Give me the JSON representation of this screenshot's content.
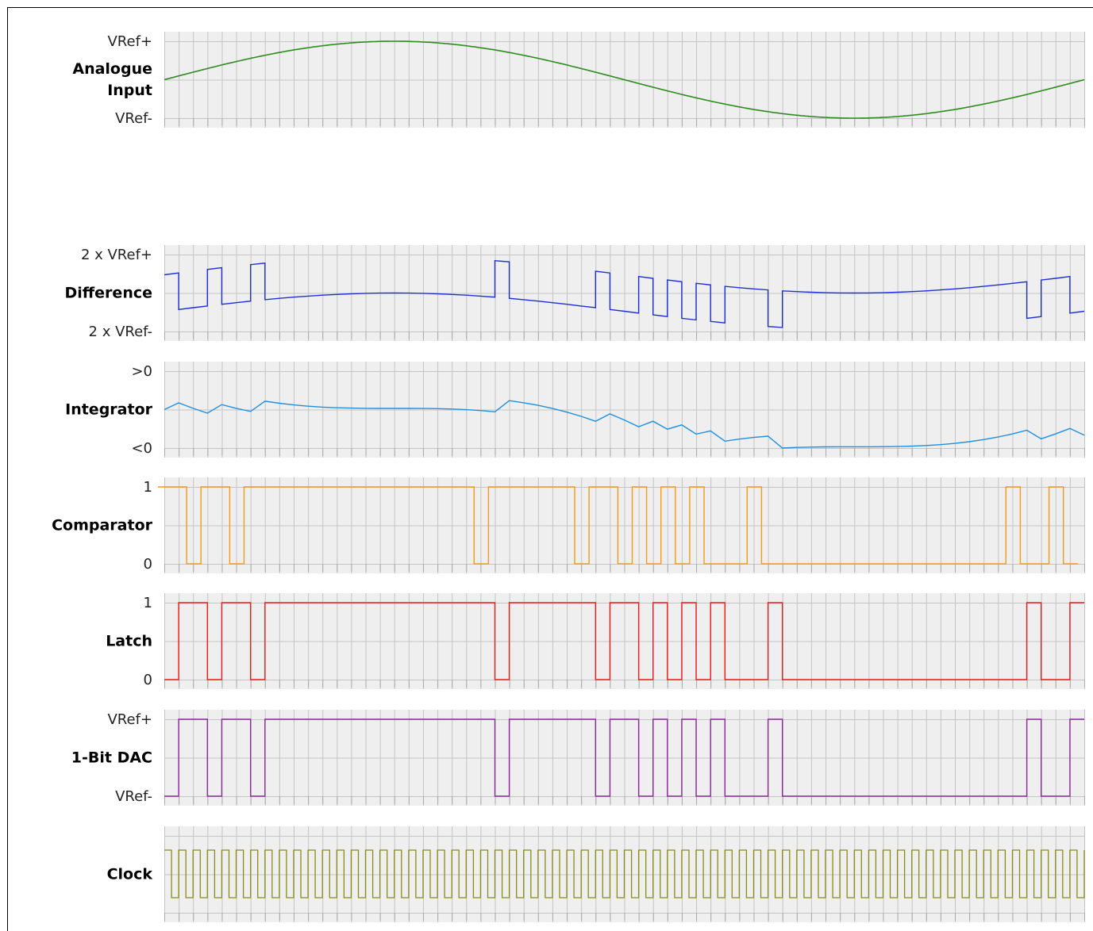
{
  "num_clocks": 64,
  "panels": [
    {
      "id": "analogue",
      "name_lines": [
        "Analogue",
        "Input"
      ],
      "labels": {
        "top": "VRef+",
        "bottom": "VRef-"
      },
      "color": "#2e8b1e",
      "kind": "sine",
      "signal": {
        "min": -1,
        "max": 1,
        "cycles": 1,
        "phase": "starts at 0 rising"
      }
    },
    {
      "id": "difference",
      "name_lines": [
        "Difference"
      ],
      "labels": {
        "top": "2 x VRef+",
        "bottom": "2 x VRef-"
      },
      "color": "#1f2fd6",
      "kind": "difference"
    },
    {
      "id": "integrator",
      "name_lines": [
        "Integrator"
      ],
      "labels": {
        "top": ">0",
        "bottom": "<0"
      },
      "color": "#1e8fe0",
      "kind": "integrator"
    },
    {
      "id": "comparator",
      "name_lines": [
        "Comparator"
      ],
      "labels": {
        "top": "1",
        "bottom": "0"
      },
      "color": "#f39a1e",
      "kind": "comparator",
      "bits": [
        1,
        1,
        0,
        1,
        1,
        0,
        1,
        1,
        1,
        1,
        1,
        1,
        1,
        1,
        1,
        1,
        1,
        1,
        1,
        1,
        1,
        1,
        0,
        1,
        1,
        1,
        1,
        1,
        1,
        0,
        1,
        1,
        0,
        1,
        0,
        1,
        0,
        1,
        0,
        0,
        0,
        1,
        0,
        0,
        0,
        0,
        0,
        0,
        0,
        0,
        0,
        0,
        0,
        0,
        0,
        0,
        0,
        0,
        0,
        1,
        0,
        0,
        1,
        0
      ]
    },
    {
      "id": "latch",
      "name_lines": [
        "Latch"
      ],
      "labels": {
        "top": "1",
        "bottom": "0"
      },
      "color": "#ee1c1c",
      "kind": "latch"
    },
    {
      "id": "dac",
      "name_lines": [
        "1-Bit DAC"
      ],
      "labels": {
        "top": "VRef+",
        "bottom": "VRef-"
      },
      "color": "#8e2a9e",
      "kind": "dac"
    },
    {
      "id": "clock",
      "name_lines": [
        "Clock"
      ],
      "labels": {
        "top": "",
        "bottom": ""
      },
      "color": "#8c8c14",
      "kind": "clock"
    }
  ]
}
